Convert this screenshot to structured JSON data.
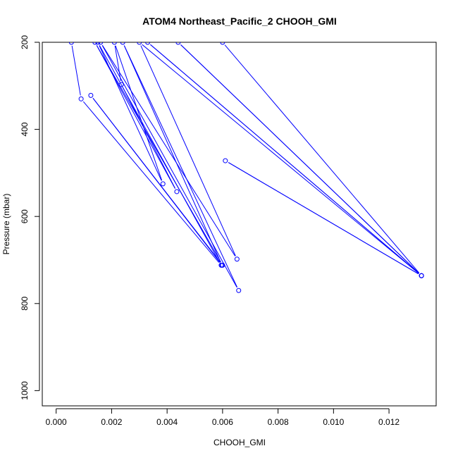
{
  "chart_data": {
    "type": "line",
    "title": "ATOM4 Northeast_Pacific_2 CHOOH_GMI",
    "xlabel": "CHOOH_GMI",
    "ylabel": "Pressure (mbar)",
    "xlim": [
      -0.0005,
      0.0137
    ],
    "ylim": [
      1035,
      200
    ],
    "y_reversed": true,
    "x_ticks": [
      0.0,
      0.002,
      0.004,
      0.006,
      0.008,
      0.01,
      0.012
    ],
    "x_tick_labels": [
      "0.000",
      "0.002",
      "0.004",
      "0.006",
      "0.008",
      "0.010",
      "0.012"
    ],
    "y_ticks": [
      200,
      400,
      600,
      800,
      1000
    ],
    "y_tick_labels": [
      "200",
      "400",
      "600",
      "800",
      "1000"
    ],
    "grid": false,
    "line_color": "#0000ff",
    "series": [
      {
        "x": [
          0.00055,
          0.0009,
          0.00595,
          0.0015,
          0.00385,
          0.0021,
          0.00235,
          0.00435,
          0.0014,
          0.006,
          0.00125,
          0.00598,
          0.0024,
          0.00658,
          0.0016,
          0.00652,
          0.003,
          0.01317,
          0.0061,
          0.01317,
          0.0044,
          0.01317,
          0.0033,
          0.01317,
          0.006
        ],
        "y": [
          200,
          330,
          712,
          200,
          525,
          200,
          297,
          543,
          200,
          712,
          322,
          712,
          200,
          770,
          200,
          698,
          200,
          736,
          472,
          736,
          200,
          736,
          200,
          736,
          200
        ]
      }
    ]
  }
}
